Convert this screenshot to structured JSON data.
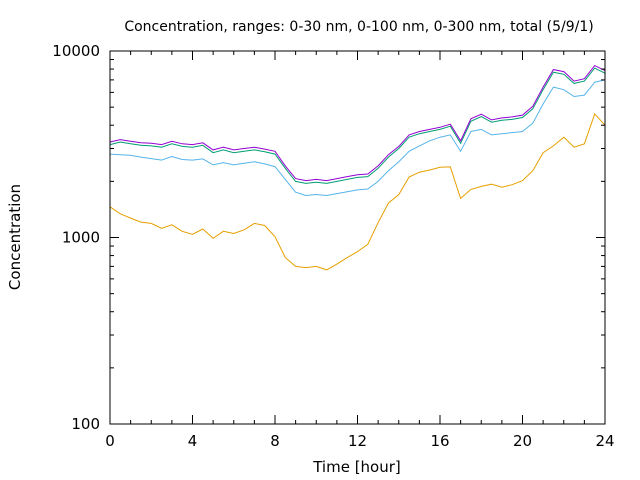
{
  "chart_data": {
    "type": "line",
    "title": "Concentration, ranges: 0-30 nm, 0-100 nm, 0-300 nm, total (5/9/1)",
    "xlabel": "Time [hour]",
    "ylabel": "Concentration",
    "xlim": [
      0,
      24
    ],
    "ylim": [
      100,
      10000
    ],
    "yscale": "log",
    "xticks": [
      "0",
      "4",
      "8",
      "12",
      "16",
      "20",
      "24"
    ],
    "yticks": [
      "100",
      "1000",
      "10000"
    ],
    "grid": false,
    "series": [
      {
        "color": "#e69f00",
        "x": [
          0,
          0.5,
          1,
          1.5,
          2,
          2.5,
          3,
          3.5,
          4,
          4.5,
          5,
          5.5,
          6,
          6.5,
          7,
          7.5,
          8,
          8.5,
          9,
          9.5,
          10,
          10.5,
          11,
          11.5,
          12,
          12.5,
          13,
          13.5,
          14,
          14.5,
          15,
          15.5,
          16,
          16.5,
          17,
          17.5,
          18,
          18.5,
          19,
          19.5,
          20,
          20.5,
          21,
          21.5,
          22,
          22.5,
          23,
          23.5,
          24
        ],
        "y": [
          1460,
          1340,
          1270,
          1210,
          1190,
          1120,
          1170,
          1080,
          1040,
          1110,
          990,
          1080,
          1050,
          1100,
          1190,
          1160,
          1010,
          780,
          700,
          690,
          700,
          670,
          720,
          780,
          840,
          920,
          1200,
          1530,
          1700,
          2110,
          2240,
          2300,
          2380,
          2390,
          1620,
          1810,
          1880,
          1930,
          1860,
          1920,
          2020,
          2280,
          2850,
          3100,
          3450,
          3050,
          3180,
          4600,
          4000
        ]
      },
      {
        "color": "#56b4e9",
        "x": [
          0,
          0.5,
          1,
          1.5,
          2,
          2.5,
          3,
          3.5,
          4,
          4.5,
          5,
          5.5,
          6,
          6.5,
          7,
          7.5,
          8,
          8.5,
          9,
          9.5,
          10,
          10.5,
          11,
          11.5,
          12,
          12.5,
          13,
          13.5,
          14,
          14.5,
          15,
          15.5,
          16,
          16.5,
          17,
          17.5,
          18,
          18.5,
          19,
          19.5,
          20,
          20.5,
          21,
          21.5,
          22,
          22.5,
          23,
          23.5,
          24
        ],
        "y": [
          2800,
          2780,
          2760,
          2700,
          2650,
          2600,
          2720,
          2620,
          2600,
          2640,
          2450,
          2520,
          2450,
          2500,
          2550,
          2480,
          2400,
          2050,
          1750,
          1680,
          1700,
          1680,
          1720,
          1760,
          1800,
          1820,
          2000,
          2280,
          2550,
          2900,
          3100,
          3300,
          3450,
          3550,
          2900,
          3700,
          3800,
          3550,
          3600,
          3650,
          3700,
          4100,
          5200,
          6400,
          6200,
          5700,
          5800,
          6800,
          7000
        ]
      },
      {
        "color": "#009e73",
        "x": [
          0,
          0.5,
          1,
          1.5,
          2,
          2.5,
          3,
          3.5,
          4,
          4.5,
          5,
          5.5,
          6,
          6.5,
          7,
          7.5,
          8,
          8.5,
          9,
          9.5,
          10,
          10.5,
          11,
          11.5,
          12,
          12.5,
          13,
          13.5,
          14,
          14.5,
          15,
          15.5,
          16,
          16.5,
          17,
          17.5,
          18,
          18.5,
          19,
          19.5,
          20,
          20.5,
          21,
          21.5,
          22,
          22.5,
          23,
          23.5,
          24
        ],
        "y": [
          3150,
          3250,
          3180,
          3120,
          3100,
          3050,
          3180,
          3080,
          3050,
          3120,
          2850,
          2950,
          2850,
          2900,
          2950,
          2880,
          2800,
          2350,
          2000,
          1950,
          1980,
          1950,
          2000,
          2050,
          2100,
          2120,
          2350,
          2700,
          3000,
          3450,
          3600,
          3700,
          3800,
          3950,
          3200,
          4200,
          4450,
          4150,
          4250,
          4300,
          4400,
          4900,
          6200,
          7700,
          7500,
          6700,
          6900,
          8100,
          7600
        ]
      },
      {
        "color": "#9400d3",
        "x": [
          0,
          0.5,
          1,
          1.5,
          2,
          2.5,
          3,
          3.5,
          4,
          4.5,
          5,
          5.5,
          6,
          6.5,
          7,
          7.5,
          8,
          8.5,
          9,
          9.5,
          10,
          10.5,
          11,
          11.5,
          12,
          12.5,
          13,
          13.5,
          14,
          14.5,
          15,
          15.5,
          16,
          16.5,
          17,
          17.5,
          18,
          18.5,
          19,
          19.5,
          20,
          20.5,
          21,
          21.5,
          22,
          22.5,
          23,
          23.5,
          24
        ],
        "y": [
          3250,
          3350,
          3280,
          3220,
          3200,
          3150,
          3280,
          3180,
          3150,
          3220,
          2950,
          3050,
          2950,
          3000,
          3050,
          2980,
          2900,
          2420,
          2070,
          2020,
          2050,
          2020,
          2070,
          2120,
          2170,
          2190,
          2420,
          2780,
          3080,
          3550,
          3700,
          3800,
          3900,
          4050,
          3300,
          4330,
          4580,
          4270,
          4380,
          4430,
          4530,
          5050,
          6400,
          7950,
          7750,
          6900,
          7100,
          8350,
          7850
        ]
      }
    ]
  }
}
